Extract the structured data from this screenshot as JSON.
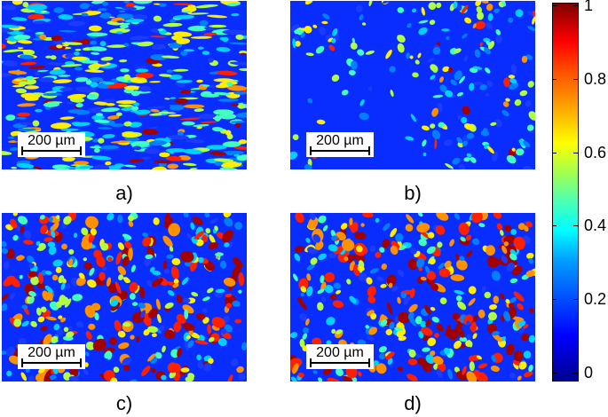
{
  "panels": [
    {
      "id": "a",
      "caption": "a)",
      "scale_label": "200 µm"
    },
    {
      "id": "b",
      "caption": "b)",
      "scale_label": "200 µm"
    },
    {
      "id": "c",
      "caption": "c)",
      "scale_label": "200 µm"
    },
    {
      "id": "d",
      "caption": "d)",
      "scale_label": "200 µm"
    }
  ],
  "colorbar": {
    "ticks": [
      "1",
      "0.8",
      "0.6",
      "0.4",
      "0.2",
      "0"
    ],
    "colormap": "jet",
    "colors": {
      "low": "#00008f",
      "mid": "#00ffff",
      "high": "#800000"
    }
  }
}
